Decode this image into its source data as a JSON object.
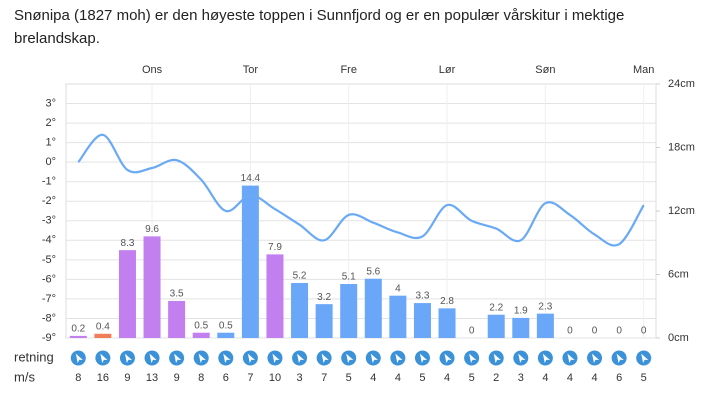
{
  "title": "Snønipa (1827 moh) er den høyeste toppen i Sunnfjord og er en populær vårskitur i mektige brelandskap.",
  "chart_data": {
    "type": "combo",
    "categories": [
      null,
      null,
      null,
      "Ons",
      null,
      null,
      null,
      "Tor",
      null,
      null,
      null,
      "Fre",
      null,
      null,
      null,
      "Lør",
      null,
      null,
      null,
      "Søn",
      null,
      null,
      null,
      "Man"
    ],
    "series": [
      {
        "type": "line",
        "axis": "y",
        "color": "#6aaaf5",
        "values": [
          0,
          1.4,
          -0.4,
          -0.3,
          0.1,
          -0.9,
          -2.5,
          -1.7,
          -2.4,
          -3.2,
          -4.0,
          -2.7,
          -3.1,
          -3.6,
          -3.8,
          -2.2,
          -3.0,
          -3.4,
          -4.0,
          -2.1,
          -2.7,
          -3.7,
          -4.2,
          -2.2
        ]
      },
      {
        "type": "bar",
        "axis": "y2",
        "values": [
          0.2,
          0.4,
          8.3,
          9.6,
          3.5,
          0.5,
          0.5,
          14.4,
          7.9,
          5.2,
          3.2,
          5.1,
          5.6,
          4,
          3.3,
          2.8,
          0,
          2.2,
          1.9,
          2.3,
          0,
          0,
          0,
          0
        ],
        "colors": [
          "#c27ff0",
          "#f07e5a",
          "#c27ff0",
          "#c27ff0",
          "#c27ff0",
          "#c27ff0",
          "#6aa7f8",
          "#6aa7f8",
          "#c27ff0",
          "#6aa7f8",
          "#6aa7f8",
          "#6aa7f8",
          "#6aa7f8",
          "#6aa7f8",
          "#6aa7f8",
          "#6aa7f8",
          "#6aa7f8",
          "#6aa7f8",
          "#6aa7f8",
          "#6aa7f8",
          "#6aa7f8",
          "#6aa7f8",
          "#6aa7f8",
          "#6aa7f8"
        ]
      }
    ],
    "ylim": [
      -9,
      4
    ],
    "yticks": [
      {
        "value": -9,
        "label": "-9°"
      },
      {
        "value": -8,
        "label": "-8°"
      },
      {
        "value": -7,
        "label": "-7°"
      },
      {
        "value": -6,
        "label": "-6°"
      },
      {
        "value": -5,
        "label": "-5°"
      },
      {
        "value": -4,
        "label": "-4°"
      },
      {
        "value": -3,
        "label": "-3°"
      },
      {
        "value": -2,
        "label": "-2°"
      },
      {
        "value": -1,
        "label": "-1°"
      },
      {
        "value": 0,
        "label": "0°"
      },
      {
        "value": 1,
        "label": "1°"
      },
      {
        "value": 2,
        "label": "2°"
      },
      {
        "value": 3,
        "label": "3°"
      }
    ],
    "y2lim": [
      0,
      24
    ],
    "y2ticks": [
      {
        "value": 0,
        "label": "0cm"
      },
      {
        "value": 6,
        "label": "6cm"
      },
      {
        "value": 12,
        "label": "12cm"
      },
      {
        "value": 18,
        "label": "18cm"
      },
      {
        "value": 24,
        "label": "24cm"
      }
    ],
    "grid": true,
    "wind": {
      "direction_label": "retning",
      "speed_label": "m/s",
      "values": [
        8,
        16,
        9,
        13,
        9,
        8,
        6,
        7,
        10,
        3,
        7,
        5,
        4,
        4,
        5,
        4,
        5,
        2,
        3,
        4,
        4,
        4,
        6,
        5
      ]
    }
  }
}
